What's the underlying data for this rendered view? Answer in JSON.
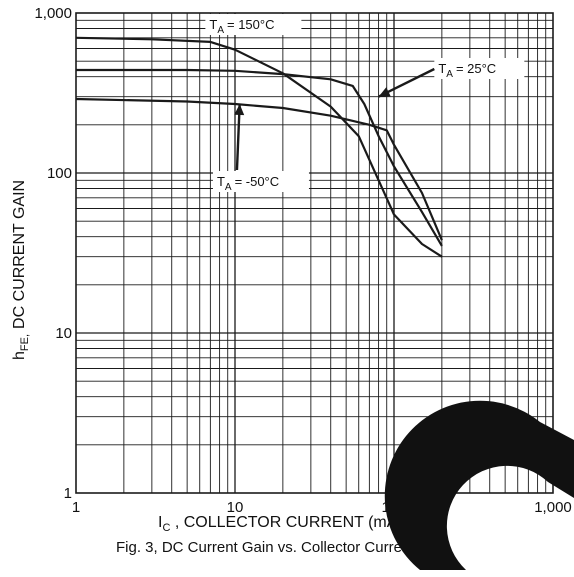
{
  "chart_data": {
    "type": "line",
    "title": "",
    "xlabel": "C, COLLECTOR CURRENT (mA)",
    "xlabel_prefix": "I",
    "ylabel": "DC CURRENT GAIN",
    "ylabel_prefix": "h",
    "ylabel_prefix_sub": "FE,",
    "x_scale": "log",
    "y_scale": "log",
    "xlim": [
      1,
      1000
    ],
    "ylim": [
      1,
      1000
    ],
    "grid": true,
    "x_ticks": [
      {
        "value": 1,
        "label": "1"
      },
      {
        "value": 10,
        "label": "10"
      },
      {
        "value": 100,
        "label": "100"
      },
      {
        "value": 1000,
        "label": "1,000"
      }
    ],
    "y_ticks": [
      {
        "value": 1,
        "label": "1"
      },
      {
        "value": 10,
        "label": "10"
      },
      {
        "value": 100,
        "label": "100"
      },
      {
        "value": 1000,
        "label": "1,000"
      }
    ],
    "series": [
      {
        "name": "= 150°C",
        "name_prefix": "T",
        "name_sub": "A",
        "x": [
          1,
          3,
          7,
          10,
          20,
          40,
          60,
          80,
          100,
          150,
          200
        ],
        "y": [
          700,
          685,
          660,
          590,
          420,
          260,
          170,
          90,
          55,
          36,
          30
        ]
      },
      {
        "name": "= 25°C",
        "name_prefix": "T",
        "name_sub": "A",
        "x": [
          1,
          5,
          10,
          20,
          40,
          55,
          65,
          80,
          100,
          150,
          200
        ],
        "y": [
          440,
          440,
          435,
          415,
          385,
          350,
          270,
          170,
          110,
          57,
          35
        ]
      },
      {
        "name": "= -50°C",
        "name_prefix": "T",
        "name_sub": "A",
        "x": [
          1,
          5,
          10,
          20,
          40,
          70,
          90,
          100,
          150,
          200
        ],
        "y": [
          290,
          280,
          270,
          255,
          228,
          200,
          185,
          150,
          75,
          38
        ]
      }
    ],
    "caption": "Fig. 3, DC Current Gain vs. Collector Current",
    "colors": {
      "line": "#1a1a1a",
      "grid": "#1a1a1a",
      "background": "#ffffff",
      "watermark": "#111111"
    }
  }
}
